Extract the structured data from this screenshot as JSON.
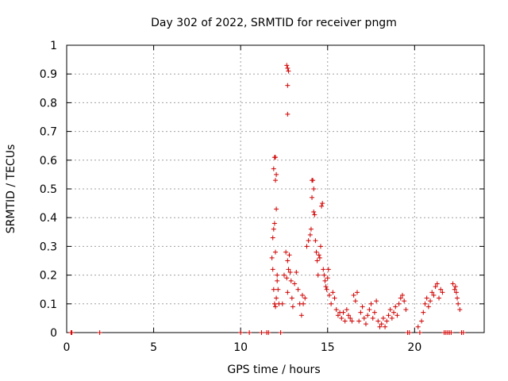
{
  "chart_data": {
    "type": "scatter",
    "title": "Day 302 of 2022, SRMTID for receiver pngm",
    "xlabel": "GPS time / hours",
    "ylabel": "SRMTID / TECUs",
    "xlim": [
      0,
      24
    ],
    "ylim": [
      0,
      1
    ],
    "xticks": [
      0,
      5,
      10,
      15,
      20
    ],
    "yticks": [
      0,
      0.1,
      0.2,
      0.3,
      0.4,
      0.5,
      0.6,
      0.7,
      0.8,
      0.9,
      1
    ],
    "ytick_labels": [
      "0",
      "0.1",
      "0.2",
      "0.3",
      "0.4",
      "0.5",
      "0.6",
      "0.7",
      "0.8",
      "0.9",
      "1"
    ],
    "grid": true,
    "marker": "+",
    "color": "#d00000",
    "series": [
      {
        "x": [
          0.25,
          0.3,
          1.9,
          10.0,
          10.5,
          11.2,
          11.5,
          11.6,
          11.8,
          11.85,
          11.9,
          11.95,
          12.0,
          12.0,
          12.05,
          12.1,
          11.85,
          11.9,
          11.95,
          12.0,
          12.05,
          11.9,
          11.95,
          12.0,
          12.05,
          12.1,
          12.15,
          12.2,
          12.3,
          12.4,
          12.5,
          12.6,
          12.65,
          12.7,
          12.75,
          12.7,
          12.7,
          12.75,
          12.7,
          12.65,
          12.7,
          12.8,
          12.85,
          12.9,
          12.95,
          13.0,
          13.1,
          13.2,
          13.3,
          13.4,
          13.5,
          13.55,
          13.6,
          13.7,
          13.8,
          13.9,
          14.0,
          14.05,
          14.1,
          14.1,
          14.15,
          14.2,
          14.2,
          14.25,
          14.3,
          14.35,
          14.4,
          14.45,
          14.5,
          14.55,
          14.6,
          14.65,
          14.7,
          14.75,
          14.8,
          14.85,
          14.9,
          14.95,
          15.0,
          15.05,
          15.1,
          15.2,
          15.3,
          15.4,
          15.5,
          15.6,
          15.7,
          15.8,
          15.9,
          16.0,
          16.1,
          16.2,
          16.3,
          16.4,
          16.5,
          16.6,
          16.7,
          16.8,
          16.9,
          17.0,
          17.1,
          17.2,
          17.3,
          17.4,
          17.5,
          17.6,
          17.7,
          17.8,
          17.9,
          18.0,
          18.1,
          18.2,
          18.3,
          18.4,
          18.5,
          18.6,
          18.7,
          18.8,
          18.9,
          19.0,
          19.1,
          19.2,
          19.3,
          19.4,
          19.5,
          19.6,
          19.7,
          20.2,
          20.3,
          20.4,
          20.5,
          20.6,
          20.7,
          20.8,
          20.9,
          21.0,
          21.1,
          21.2,
          21.3,
          21.4,
          21.5,
          21.6,
          21.7,
          21.8,
          21.9,
          22.0,
          22.1,
          22.2,
          22.3,
          22.35,
          22.4,
          22.45,
          22.5,
          22.6,
          22.7,
          22.8
        ],
        "y": [
          0,
          0,
          0,
          0,
          0,
          0,
          0,
          0,
          0.26,
          0.22,
          0.15,
          0.1,
          0.09,
          0.28,
          0.12,
          0.18,
          0.33,
          0.36,
          0.38,
          0.53,
          0.55,
          0.57,
          0.61,
          0.61,
          0.43,
          0.2,
          0.15,
          0.1,
          0,
          0.1,
          0.2,
          0.28,
          0.93,
          0.92,
          0.91,
          0.86,
          0.76,
          0.22,
          0.25,
          0.19,
          0.14,
          0.27,
          0.21,
          0.18,
          0.12,
          0.09,
          0.17,
          0.21,
          0.15,
          0.1,
          0.06,
          0.13,
          0.1,
          0.12,
          0.3,
          0.32,
          0.34,
          0.36,
          0.47,
          0.53,
          0.53,
          0.5,
          0.42,
          0.41,
          0.32,
          0.28,
          0.25,
          0.2,
          0.27,
          0.26,
          0.3,
          0.44,
          0.45,
          0.22,
          0.2,
          0.18,
          0.16,
          0.15,
          0.19,
          0.22,
          0.13,
          0.1,
          0.14,
          0.12,
          0.08,
          0.06,
          0.07,
          0.05,
          0.07,
          0.04,
          0.08,
          0.06,
          0.05,
          0.04,
          0.13,
          0.11,
          0.14,
          0.04,
          0.07,
          0.09,
          0.05,
          0.03,
          0.06,
          0.08,
          0.1,
          0.05,
          0.07,
          0.11,
          0.04,
          0.02,
          0.03,
          0.05,
          0.02,
          0.04,
          0.06,
          0.08,
          0.05,
          0.07,
          0.09,
          0.06,
          0.1,
          0.12,
          0.13,
          0.11,
          0.08,
          0,
          0,
          0.02,
          0,
          0.04,
          0.07,
          0.1,
          0.12,
          0.09,
          0.11,
          0.14,
          0.13,
          0.16,
          0.17,
          0.12,
          0.15,
          0.14,
          0,
          0,
          0,
          0,
          0,
          0.17,
          0.15,
          0.16,
          0.14,
          0.12,
          0.1,
          0.08,
          0,
          0
        ]
      }
    ]
  }
}
